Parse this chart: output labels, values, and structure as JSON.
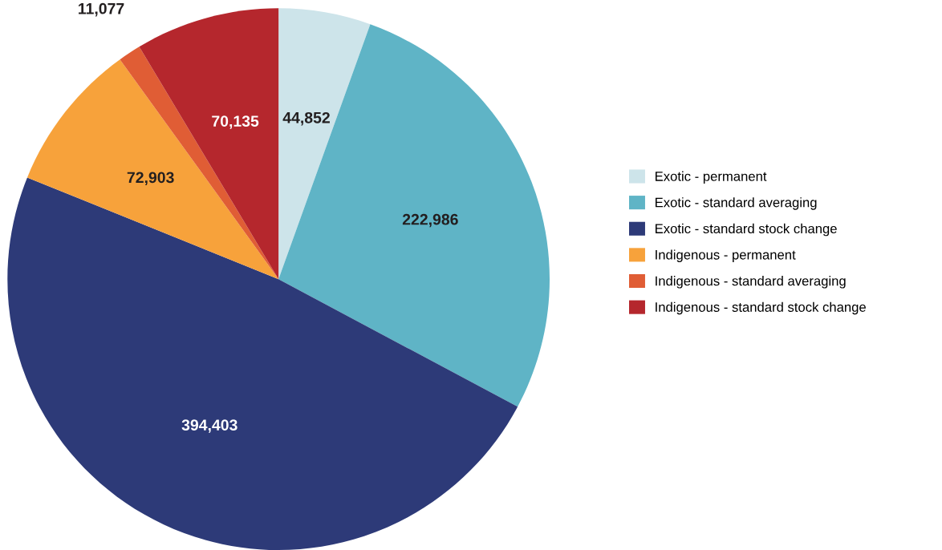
{
  "chart_data": {
    "type": "pie",
    "categories": [
      "Exotic - permanent",
      "Exotic - standard averaging",
      "Exotic - standard stock change",
      "Indigenous - permanent",
      "Indigenous - standard averaging",
      "Indigenous - standard stock change"
    ],
    "values": [
      44852,
      222986,
      394403,
      72903,
      11077,
      70135
    ],
    "colors": [
      "#cde4ea",
      "#5fb4c6",
      "#2d3a78",
      "#f7a23b",
      "#e05d35",
      "#b5272d"
    ],
    "value_labels": [
      "44,852",
      "222,986",
      "394,403",
      "72,903",
      "11,077",
      "70,135"
    ],
    "legend": "right"
  }
}
